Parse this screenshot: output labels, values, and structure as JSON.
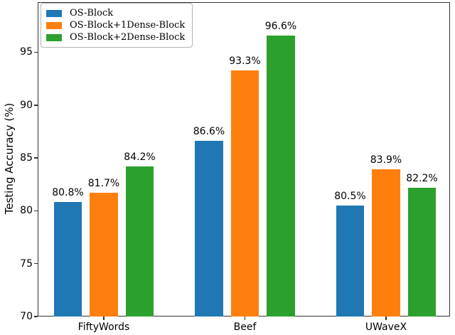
{
  "chart_data": {
    "type": "bar",
    "title": "",
    "xlabel": "",
    "ylabel": "Testing Accuracy (%)",
    "categories": [
      "FiftyWords",
      "Beef",
      "UWaveX"
    ],
    "series": [
      {
        "name": "OS-Block",
        "color": "#1f77b4",
        "values": [
          80.8,
          86.6,
          80.5
        ],
        "labels": [
          "80.8%",
          "86.6%",
          "80.5%"
        ]
      },
      {
        "name": "OS-Block+1Dense-Block",
        "color": "#ff7f0e",
        "values": [
          81.7,
          93.3,
          83.9
        ],
        "labels": [
          "81.7%",
          "93.3%",
          "83.9%"
        ]
      },
      {
        "name": "OS-Block+2Dense-Block",
        "color": "#2ca02c",
        "values": [
          84.2,
          96.6,
          82.2
        ],
        "labels": [
          "84.2%",
          "96.6%",
          "82.2%"
        ]
      }
    ],
    "yticks": [
      70,
      75,
      80,
      85,
      90,
      95
    ],
    "ytick_labels": [
      "70",
      "75",
      "80",
      "85",
      "90",
      "95"
    ],
    "ylim": [
      70,
      99.74
    ],
    "grid": false,
    "legend_position": "upper left",
    "background": "#ffffff",
    "text_color": "#000000"
  }
}
